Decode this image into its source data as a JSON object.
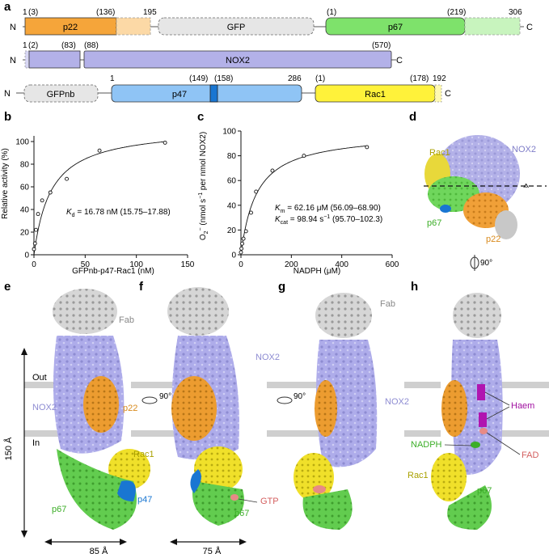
{
  "panel_letters": [
    "a",
    "b",
    "c",
    "d",
    "e",
    "f",
    "g",
    "h"
  ],
  "panel_a": {
    "row1": {
      "n": "N",
      "c": "C",
      "ticks": [
        "1",
        "(3)",
        "(136)",
        "195",
        "(1)",
        "(219)",
        "306"
      ],
      "p22": "p22",
      "gfp": "GFP",
      "p67": "p67"
    },
    "row2": {
      "n": "N",
      "c": "C",
      "ticks": [
        "1",
        "(2)",
        "(83)",
        "(88)",
        "(570)"
      ],
      "nox2": "NOX2"
    },
    "row3": {
      "n": "N",
      "c": "C",
      "ticks": [
        "1",
        "(149)",
        "(158)",
        "286",
        "(1)",
        "(178)",
        "192"
      ],
      "gfpnb": "GFPnb",
      "p47": "p47",
      "rac1": "Rac1"
    },
    "colors": {
      "p22": "#f5a53a",
      "p22_light": "#fcd9a6",
      "gfp": "#e6e6e6",
      "p67": "#7ee26b",
      "p67_light": "#c8f4be",
      "nox2": "#b3b1e8",
      "p47": "#8fc4f5",
      "p47_dark": "#1976d2",
      "rac1": "#fff23a",
      "rac1_light": "#fff9b0"
    }
  },
  "panel_b": {
    "ylabel": "Relative activity (%)",
    "xlabel": "GFPnb-p47-Rac1 (nM)",
    "xticks": [
      "0",
      "50",
      "100",
      "150"
    ],
    "yticks": [
      "0",
      "20",
      "40",
      "60",
      "80",
      "100"
    ],
    "kd_symbol": "K",
    "kd_sub": "d",
    "kd_text": " = 16.78 nM (15.75–17.88)"
  },
  "panel_c": {
    "ylabel_pre": "O",
    "ylabel_sub": "2",
    "ylabel_sup": "−",
    "ylabel_mid": " (nmol s",
    "ylabel_sup2": "−1",
    "ylabel_post": " per nmol NOX2)",
    "xlabel": "NADPH (μM)",
    "xticks": [
      "0",
      "200",
      "400",
      "600"
    ],
    "yticks": [
      "0",
      "20",
      "40",
      "60",
      "80",
      "100"
    ],
    "km_symbol": "K",
    "km_sub": "m",
    "km_text": " = 62.16 μM (56.09–68.90)",
    "kcat_symbol": "K",
    "kcat_sub": "cat",
    "kcat_text": " = 98.94 s",
    "kcat_sup": "−1",
    "kcat_range": " (95.70–102.3)"
  },
  "panel_d": {
    "rac1": "Rac1",
    "nox2": "NOX2",
    "p67": "p67",
    "p22": "p22",
    "rot": "90°"
  },
  "panel_e": {
    "fab": "Fab",
    "out": "Out",
    "in": "In",
    "nox2": "NOX2",
    "p22": "p22",
    "rac1": "Rac1",
    "p47": "p47",
    "p67": "p67",
    "rot": "90°",
    "scale_v": "150 Å",
    "scale_h": "85 Å"
  },
  "panel_f": {
    "nox2": "NOX2",
    "gtp": "GTP",
    "p67": "p67",
    "scale_h": "75 Å"
  },
  "panel_g": {
    "fab": "Fab",
    "nox2": "NOX2",
    "rot": "90°"
  },
  "panel_h": {
    "haem": "Haem",
    "nadph": "NADPH",
    "fad": "FAD",
    "rac1": "Rac1",
    "p67": "p67"
  },
  "chart_data": [
    {
      "type": "scatter",
      "panel": "b",
      "xlabel": "GFPnb-p47-Rac1 (nM)",
      "ylabel": "Relative activity (%)",
      "xlim": [
        0,
        150
      ],
      "ylim": [
        0,
        105
      ],
      "series": [
        {
          "x": [
            0,
            1,
            2,
            4,
            8,
            16,
            32,
            64,
            128
          ],
          "y": [
            5,
            10,
            22,
            36,
            48,
            55,
            67,
            92,
            99
          ]
        }
      ],
      "fit": {
        "model": "hyperbolic",
        "kd": 16.78,
        "vmax": 113
      }
    },
    {
      "type": "scatter",
      "panel": "c",
      "xlabel": "NADPH (μM)",
      "ylabel": "O2− (nmol s−1 per nmol NOX2)",
      "xlim": [
        0,
        600
      ],
      "ylim": [
        0,
        100
      ],
      "series": [
        {
          "x": [
            0,
            2,
            5,
            10,
            20,
            40,
            60,
            125,
            250,
            500
          ],
          "y": [
            2,
            5,
            9,
            13,
            19,
            34,
            51,
            68,
            80,
            87
          ]
        }
      ],
      "fit": {
        "model": "michaelis-menten",
        "km": 62.16,
        "kcat": 98.94
      }
    }
  ]
}
